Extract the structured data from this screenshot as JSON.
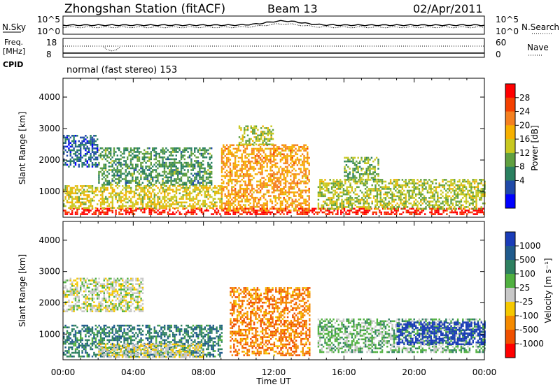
{
  "header": {
    "station": "Zhongshan Station (fitACF)",
    "beam": "Beam 13",
    "date": "02/Apr/2011"
  },
  "noise_panel": {
    "left_label": "N.Sky",
    "right_label": "N.Search",
    "left_ticks": [
      "10^5",
      "10^0"
    ],
    "right_ticks": [
      "10^5",
      "10^0"
    ]
  },
  "freq_panel": {
    "left_label": "Freq.",
    "left_unit": "[MHz]",
    "left_ticks": [
      "18",
      "8"
    ],
    "right_label": "Nave",
    "right_ticks": [
      "60",
      "0"
    ],
    "cpid_label": "CPID"
  },
  "cpid_text": "normal (fast stereo) 153",
  "axes": {
    "ylabel": "Slant Range [km]",
    "yticks": [
      "4000",
      "3000",
      "2000",
      "1000"
    ],
    "xticks": [
      "00:00",
      "04:00",
      "08:00",
      "12:00",
      "16:00",
      "20:00",
      "00:00"
    ],
    "xlabel": "Time UT"
  },
  "power_colorbar": {
    "label": "Power [dB]",
    "ticks": [
      "28",
      "24",
      "20",
      "16",
      "12",
      "8",
      "4"
    ],
    "colors": [
      "#ff0000",
      "#f44000",
      "#f58020",
      "#f6b000",
      "#c8c820",
      "#60a040",
      "#2a8060",
      "#204aa8",
      "#0000ff"
    ]
  },
  "velocity_colorbar": {
    "label": "Velocity [m s⁻¹]",
    "ticks": [
      "1000",
      "500",
      "100",
      "25",
      "-25",
      "-100",
      "-500",
      "-1000"
    ],
    "colors": [
      "#1a3cb8",
      "#1f5a8c",
      "#2e8060",
      "#50b040",
      "#c8c8c8",
      "#f5c800",
      "#f58a00",
      "#f05000",
      "#ff0000"
    ]
  },
  "chart_data": [
    {
      "type": "heatmap",
      "title": "",
      "xlabel": "Time UT",
      "ylabel": "Slant Range [km]",
      "xlim": [
        0,
        24
      ],
      "ylim": [
        180,
        4600
      ],
      "colorbar": {
        "label": "Power [dB]",
        "range": [
          0,
          30
        ]
      },
      "regions": [
        {
          "x": [
            0.0,
            24.0
          ],
          "y": [
            250,
            480
          ],
          "value": 28
        },
        {
          "x": [
            0.0,
            9.0
          ],
          "y": [
            480,
            1200
          ],
          "value": 16
        },
        {
          "x": [
            2.0,
            8.5
          ],
          "y": [
            1200,
            2400
          ],
          "value": 10
        },
        {
          "x": [
            9.0,
            14.0
          ],
          "y": [
            400,
            2500
          ],
          "value": 20
        },
        {
          "x": [
            10.0,
            12.0
          ],
          "y": [
            2500,
            3100
          ],
          "value": 14
        },
        {
          "x": [
            14.5,
            24.0
          ],
          "y": [
            450,
            1400
          ],
          "value": 14
        },
        {
          "x": [
            16.0,
            18.0
          ],
          "y": [
            1400,
            2100
          ],
          "value": 12
        },
        {
          "x": [
            0.0,
            2.0
          ],
          "y": [
            1800,
            2800
          ],
          "value": 6
        }
      ]
    },
    {
      "type": "heatmap",
      "title": "",
      "xlabel": "Time UT",
      "ylabel": "Slant Range [km]",
      "xlim": [
        0,
        24
      ],
      "ylim": [
        180,
        4600
      ],
      "colorbar": {
        "label": "Velocity [m s⁻¹]",
        "range": [
          -1000,
          1000
        ]
      },
      "regions": [
        {
          "x": [
            0.0,
            9.0
          ],
          "y": [
            300,
            1300
          ],
          "value": 500
        },
        {
          "x": [
            0.0,
            4.5
          ],
          "y": [
            1700,
            2800
          ],
          "value": 0
        },
        {
          "x": [
            2.0,
            8.0
          ],
          "y": [
            250,
            700
          ],
          "value": -100
        },
        {
          "x": [
            9.5,
            14.0
          ],
          "y": [
            300,
            2500
          ],
          "value": -500
        },
        {
          "x": [
            14.5,
            24.0
          ],
          "y": [
            400,
            1500
          ],
          "value": 200
        },
        {
          "x": [
            19.0,
            24.0
          ],
          "y": [
            700,
            1400
          ],
          "value": 1000
        }
      ]
    }
  ]
}
